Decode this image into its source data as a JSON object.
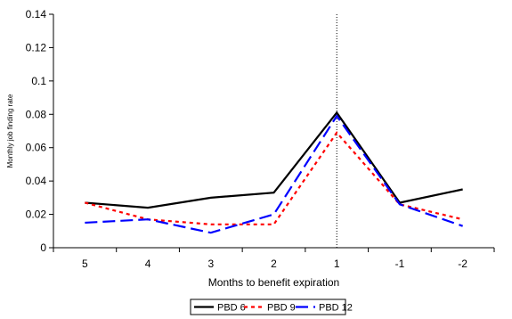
{
  "chart_data": {
    "type": "line",
    "categories": [
      "5",
      "4",
      "3",
      "2",
      "1",
      "-1",
      "-2"
    ],
    "series": [
      {
        "name": "PBD 6",
        "color": "#000000",
        "dash": "solid",
        "values": [
          0.027,
          0.024,
          0.03,
          0.033,
          0.081,
          0.027,
          0.035
        ]
      },
      {
        "name": "PBD 9",
        "color": "#ff0000",
        "dash": "dotted",
        "values": [
          0.027,
          0.017,
          0.014,
          0.014,
          0.069,
          0.026,
          0.017
        ]
      },
      {
        "name": "PBD 12",
        "color": "#0000ff",
        "dash": "dashed",
        "values": [
          0.015,
          0.017,
          0.009,
          0.02,
          0.079,
          0.026,
          0.013
        ]
      }
    ],
    "xlabel": "Months to benefit expiration",
    "ylabel": "Monthly job finding rate",
    "ylim": [
      0,
      0.14
    ],
    "yticks": [
      "0",
      "0.02",
      "0.04",
      "0.06",
      "0.08",
      "0.1",
      "0.12",
      "0.14"
    ],
    "vline_category": "1",
    "grid": false,
    "legend_position": "bottom"
  }
}
